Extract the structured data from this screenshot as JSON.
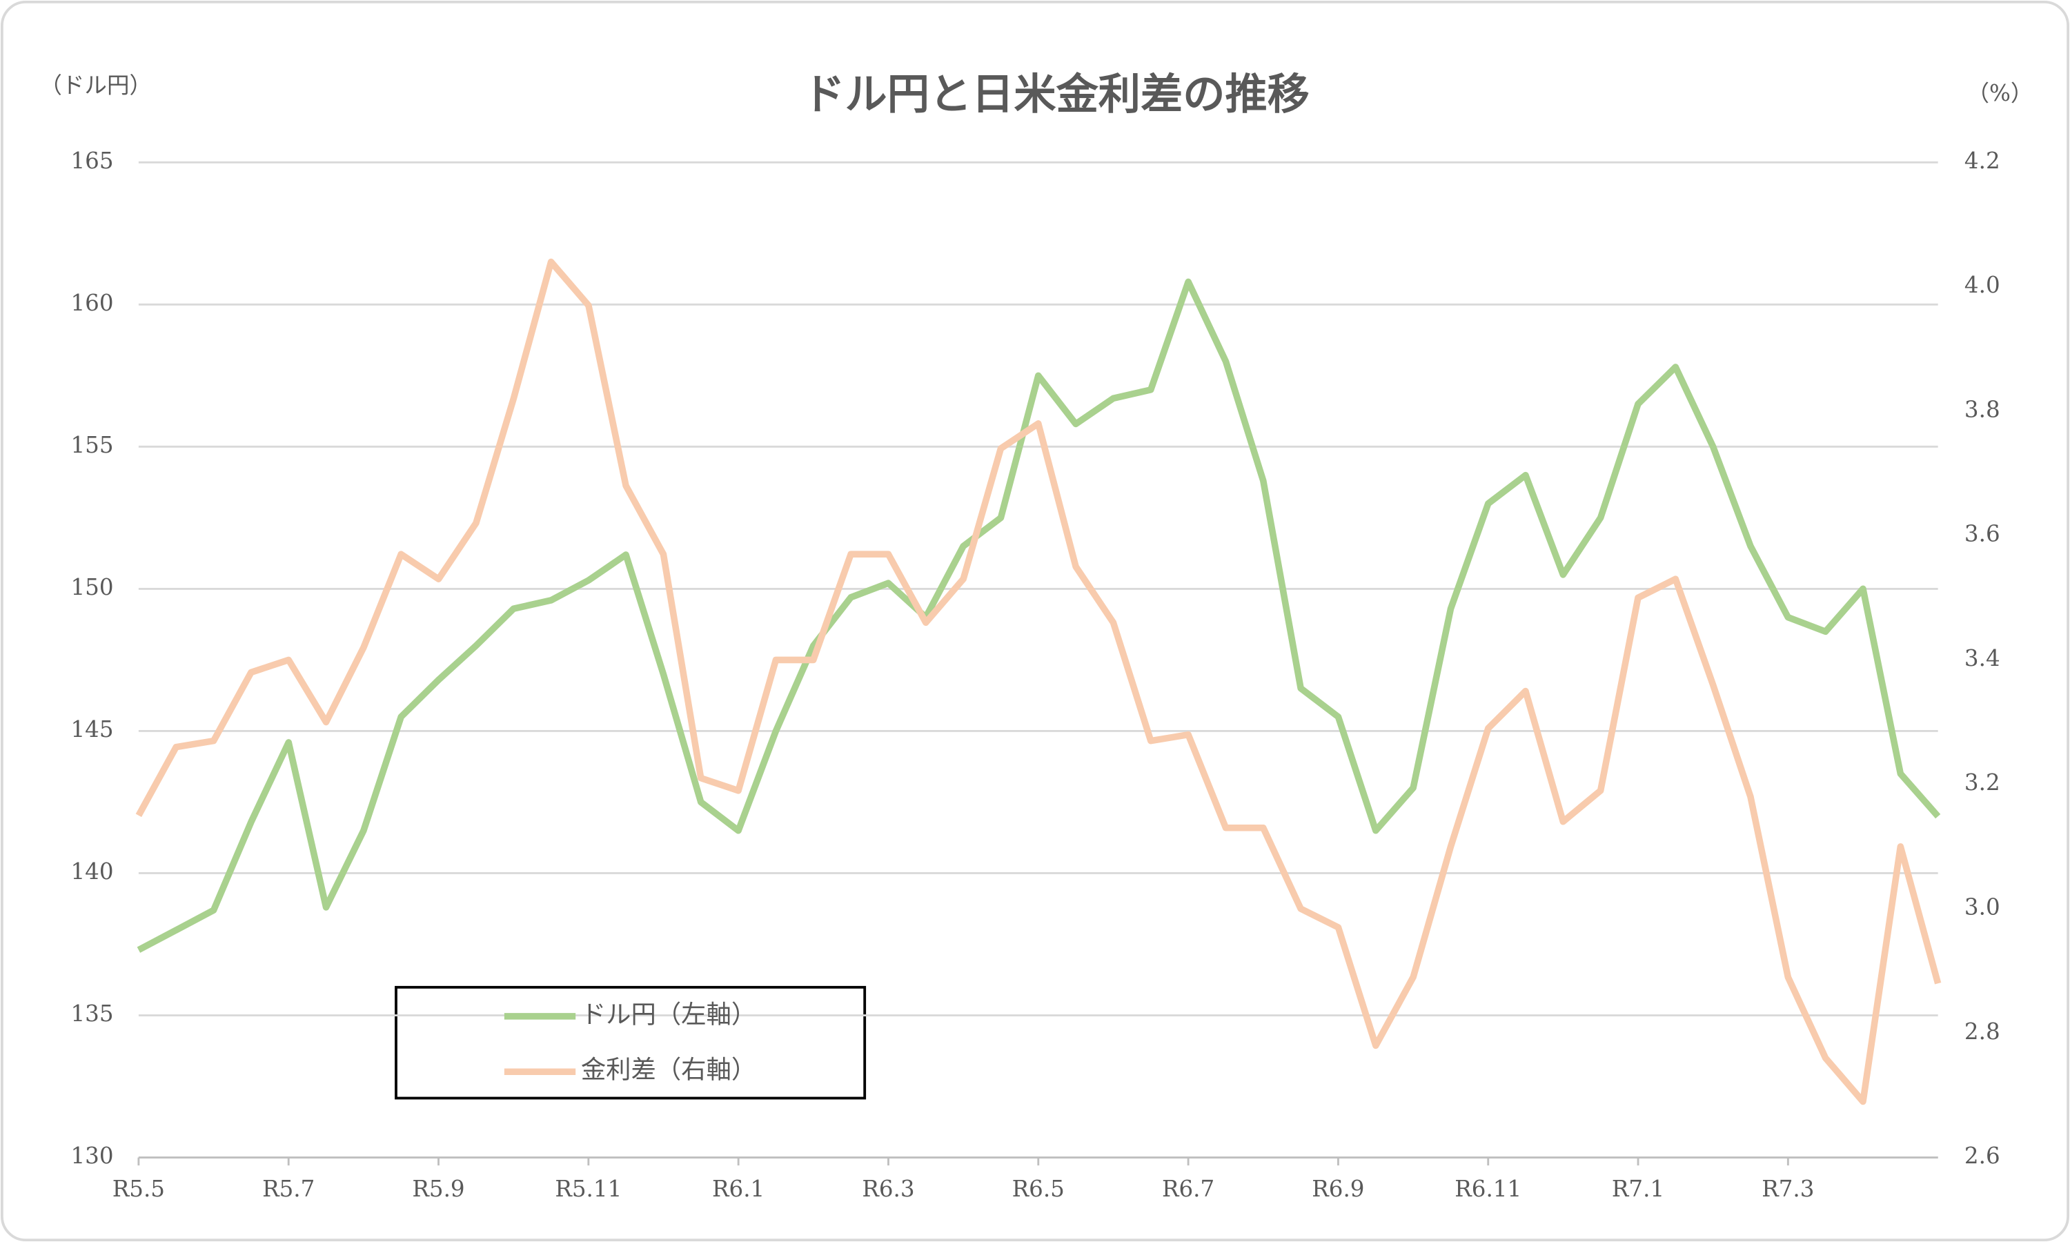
{
  "chart_data": {
    "type": "line",
    "title": "ドル円と日米金利差の推移",
    "y_label": "（ドル円）",
    "y2_label": "（%）",
    "categories": [
      "R5.5",
      null,
      null,
      null,
      "R5.7",
      null,
      null,
      null,
      "R5.9",
      null,
      null,
      null,
      "R5.11",
      null,
      null,
      null,
      "R6.1",
      null,
      null,
      null,
      "R6.3",
      null,
      null,
      null,
      "R6.5",
      null,
      null,
      null,
      "R6.7",
      null,
      null,
      null,
      "R6.9",
      null,
      null,
      null,
      "R6.11",
      null,
      null,
      null,
      "R7.1",
      null,
      null,
      null,
      "R7.3",
      null,
      null,
      null,
      null
    ],
    "series": [
      {
        "name": "ドル円（左軸）",
        "color": "#a9d18e",
        "values": [
          137.3,
          138.0,
          138.7,
          141.8,
          144.6,
          138.8,
          141.5,
          145.5,
          146.8,
          148,
          149.3,
          149.6,
          150.3,
          151.2,
          147,
          142.5,
          141.5,
          145,
          148,
          149.7,
          150.2,
          149,
          151.5,
          152.5,
          157.5,
          155.8,
          156.7,
          157,
          160.8,
          158,
          153.8,
          146.5,
          145.5,
          141.5,
          143,
          149.3,
          153,
          154,
          150.5,
          152.5,
          156.5,
          157.8,
          155,
          151.5,
          149,
          148.5,
          150,
          143.5,
          142
        ]
      },
      {
        "name": "金利差（右軸）",
        "color": "#f8cbad",
        "axis": "y2",
        "values": [
          3.15,
          3.26,
          3.27,
          3.38,
          3.4,
          3.3,
          3.42,
          3.57,
          3.53,
          3.62,
          3.82,
          4.04,
          3.97,
          3.68,
          3.57,
          3.21,
          3.19,
          3.4,
          3.4,
          3.57,
          3.57,
          3.46,
          3.53,
          3.74,
          3.78,
          3.55,
          3.46,
          3.27,
          3.28,
          3.13,
          3.13,
          3.0,
          2.97,
          2.78,
          2.89,
          3.1,
          3.29,
          3.35,
          3.14,
          3.19,
          3.5,
          3.53,
          3.36,
          3.18,
          2.89,
          2.76,
          2.69,
          3.1,
          2.88
        ]
      }
    ],
    "ylim": [
      130,
      165
    ],
    "yticks": [
      130,
      135,
      140,
      145,
      150,
      155,
      160,
      165
    ],
    "y2lim": [
      2.6,
      4.2
    ],
    "y2ticks": [
      2.6,
      2.8,
      {
        "value": 3,
        "label": "3.0"
      },
      3.2,
      3.4,
      3.6,
      3.8,
      {
        "value": 4,
        "label": "4.0"
      },
      4.2
    ],
    "grid": true
  }
}
